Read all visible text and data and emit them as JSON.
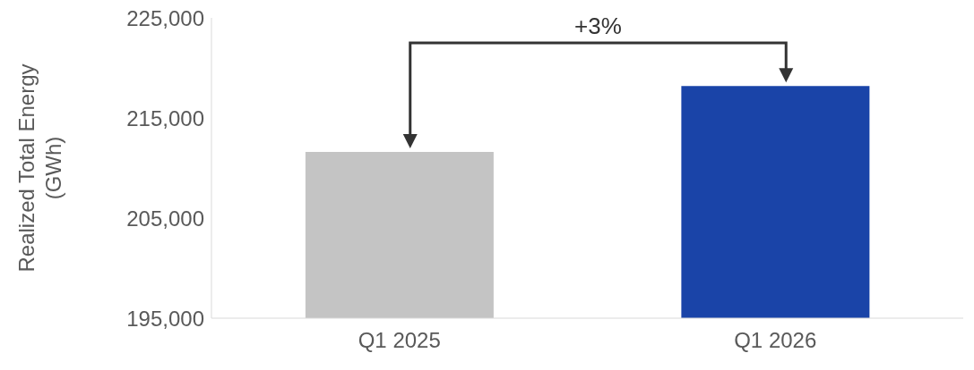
{
  "chart_data": {
    "type": "bar",
    "ylabel": "Realized Total Energy (GWh)",
    "categories": [
      "Q1 2025",
      "Q1 2026"
    ],
    "values": [
      211600,
      218200
    ],
    "colors": [
      "#c4c4c4",
      "#1a44a8"
    ],
    "ylim": [
      195000,
      225000
    ],
    "yticks": [
      {
        "value": 195000,
        "label": "195,000"
      },
      {
        "value": 205000,
        "label": "205,000"
      },
      {
        "value": 215000,
        "label": "215,000"
      },
      {
        "value": 225000,
        "label": "225,000"
      }
    ],
    "grid": false,
    "annotations": [
      "+3%"
    ]
  }
}
